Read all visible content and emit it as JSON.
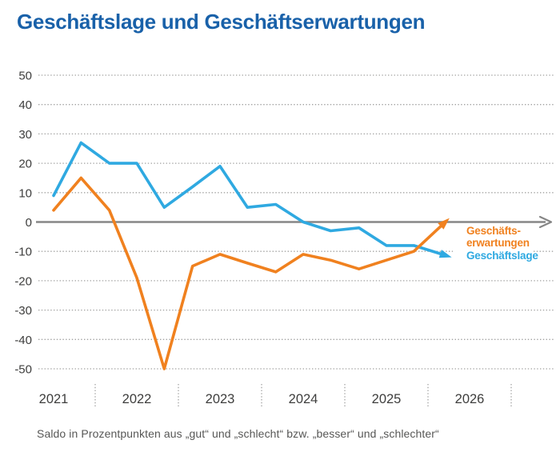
{
  "chart_data": {
    "type": "line",
    "title": "Geschäftslage und Geschäftserwartungen",
    "footnote": "Saldo in Prozentpunkten aus „gut“ und „schlecht“ bzw. „besser“ und „schlechter“",
    "x_axis_labels": [
      "2021",
      "2022",
      "2023",
      "2024",
      "2025",
      "2026"
    ],
    "x_range": [
      2021,
      2026.5
    ],
    "ylim": [
      -50,
      50
    ],
    "yticks": [
      50,
      40,
      30,
      20,
      10,
      0,
      -10,
      -20,
      -30,
      -40,
      -50
    ],
    "grid": "dotted horizontal lines, solid zero axis with right arrow",
    "samples_per_year": 3,
    "series": [
      {
        "name": "Geschäftslage",
        "color": "#2FA9E1",
        "end_arrow": true,
        "x": [
          2021.0,
          2021.33,
          2021.67,
          2022.0,
          2022.33,
          2022.67,
          2023.0,
          2023.33,
          2023.67,
          2024.0,
          2024.33,
          2024.67,
          2025.0,
          2025.33,
          2025.67
        ],
        "values": [
          9,
          27,
          20,
          20,
          5,
          12,
          19,
          5,
          6,
          0,
          -3,
          -2,
          -8,
          -8,
          -11
        ]
      },
      {
        "name": "Geschäftserwartungen",
        "color": "#F0811F",
        "end_arrow": true,
        "x": [
          2021.0,
          2021.33,
          2021.67,
          2022.0,
          2022.33,
          2022.67,
          2023.0,
          2023.33,
          2023.67,
          2024.0,
          2024.33,
          2024.67,
          2025.0,
          2025.33,
          2025.67
        ],
        "values": [
          4,
          15,
          4,
          -19,
          -50,
          -15,
          -11,
          -14,
          -17,
          -11,
          -13,
          -16,
          -13,
          -10,
          -1
        ]
      }
    ]
  },
  "legend": {
    "erwartungen_line1": "Geschäfts-",
    "erwartungen_line2": "erwartungen",
    "lage": "Geschäftslage"
  },
  "colors": {
    "title": "#1961A9",
    "axis_text": "#3E3E3D",
    "grid": "#A2A2A1",
    "zero_line": "#868686"
  }
}
